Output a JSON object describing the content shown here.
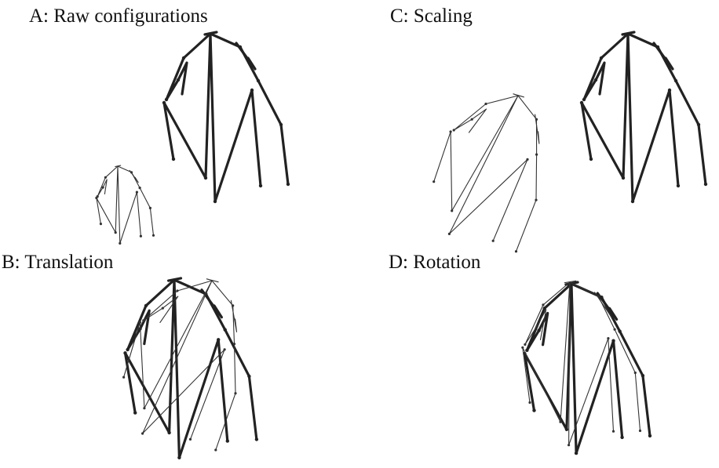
{
  "panels": {
    "a": {
      "label": "A: Raw configurations"
    },
    "b": {
      "label": "B: Translation"
    },
    "c": {
      "label": "C: Scaling"
    },
    "d": {
      "label": "D: Rotation"
    }
  }
}
